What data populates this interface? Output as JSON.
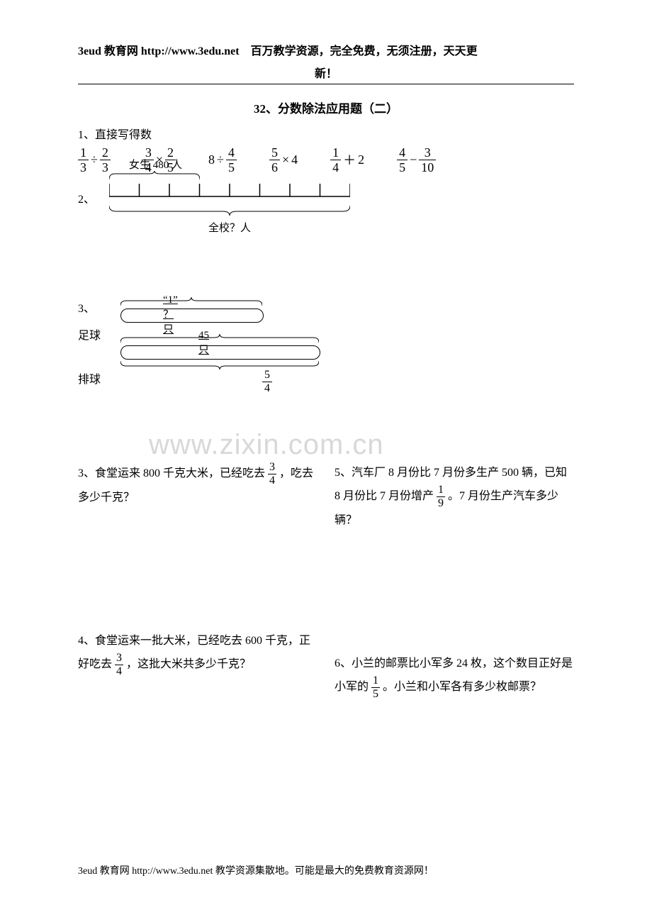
{
  "header": {
    "line1_a": "3eud 教育网  http://www.3edu.net",
    "line1_b": "百万教学资源，完全免费，无须注册，天天更",
    "line2": "新！"
  },
  "title": "32、分数除法应用题（二）",
  "q1": {
    "label": "1、直接写得数",
    "exprs": {
      "e1": {
        "a_n": "1",
        "a_d": "3",
        "op": "÷",
        "b_n": "2",
        "b_d": "3"
      },
      "e2": {
        "a_n": "3",
        "a_d": "4",
        "op": "×",
        "b_n": "2",
        "b_d": "5"
      },
      "e3": {
        "a": "8",
        "op": "÷",
        "b_n": "4",
        "b_d": "5"
      },
      "e4": {
        "a_n": "5",
        "a_d": "6",
        "op": "×",
        "b": "4"
      },
      "e5": {
        "a_n": "1",
        "a_d": "4",
        "op": "＋",
        "b": "2"
      },
      "e6": {
        "a_n": "4",
        "a_d": "5",
        "op": "−",
        "b_n": "3",
        "b_d": "10"
      }
    }
  },
  "q2": {
    "label": "2、",
    "top_label": "女生 480 人",
    "bottom_label": "全校？人",
    "ticks": 9,
    "top_brace_span": 3
  },
  "q3": {
    "label": "3、",
    "row1_label": "足球",
    "row2_label": "排球",
    "bar1_label": "“1”  ？只",
    "bar2_label": "45  只",
    "frac_n": "5",
    "frac_d": "4",
    "bar1_width": 200,
    "bar2_width": 280
  },
  "watermark": "www.zixin.com.cn",
  "problems": {
    "p3": {
      "pre": "3、食堂运来 800 千克大米，已经吃去",
      "fn": "3",
      "fd": "4",
      "post": "，吃去多少千克？"
    },
    "p4": {
      "pre": "4、食堂运来一批大米，已经吃去 600 千克，正好吃去",
      "fn": "3",
      "fd": "4",
      "post": "，这批大米共多少千克？"
    },
    "p5": {
      "pre": "5、汽车厂 8 月份比 7 月份多生产 500 辆，已知 8 月份比 7 月份增产",
      "fn": "1",
      "fd": "9",
      "post": "。7 月份生产汽车多少辆？"
    },
    "p6": {
      "pre": "6、小兰的邮票比小军多 24 枚，这个数目正好是小军的",
      "fn": "1",
      "fd": "5",
      "post": "。小兰和小军各有多少枚邮票？"
    }
  },
  "footer": "3eud 教育网  http://www.3edu.net    教学资源集散地。可能是最大的免费教育资源网！"
}
